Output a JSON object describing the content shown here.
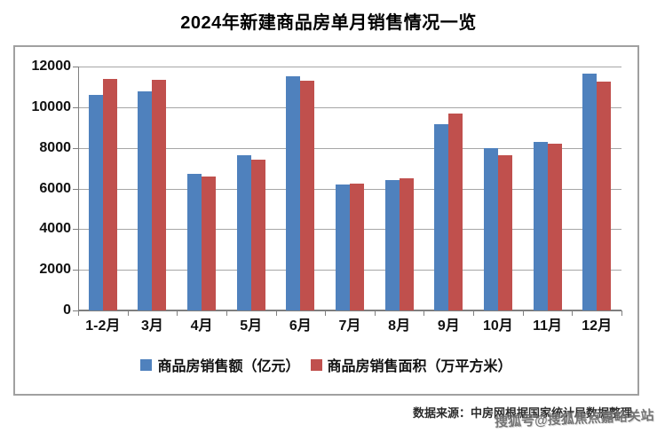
{
  "title": "2024年新建商品房单月销售情况一览",
  "source_note": "数据来源：中房网根据国家统计局数据整理",
  "watermark": "搜狐号@搜狐焦点嘉峪关站",
  "colors": {
    "series_sales_amount": "#4F81BD",
    "series_sales_area": "#C0504D",
    "gridline": "#A6A6A6",
    "axis": "#7F7F7F",
    "frame_border": "#A0A0A0",
    "title_text": "#000000"
  },
  "chart_data": {
    "type": "bar",
    "title": "2024年新建商品房单月销售情况一览",
    "categories": [
      "1-2月",
      "3月",
      "4月",
      "5月",
      "6月",
      "7月",
      "8月",
      "9月",
      "10月",
      "11月",
      "12月"
    ],
    "series": [
      {
        "name": "商品房销售额（亿元）",
        "color": "#4F81BD",
        "values": [
          10600,
          10800,
          6700,
          7650,
          11500,
          6200,
          6400,
          9150,
          8000,
          8300,
          11650
        ]
      },
      {
        "name": "商品房销售面积（万平方米）",
        "color": "#C0504D",
        "values": [
          11400,
          11350,
          6600,
          7400,
          11300,
          6250,
          6500,
          9700,
          7650,
          8200,
          11250
        ]
      }
    ],
    "xlabel": "",
    "ylabel": "",
    "ylim": [
      0,
      12000
    ],
    "ytick_step": 2000,
    "grid": true,
    "legend_position": "bottom"
  }
}
